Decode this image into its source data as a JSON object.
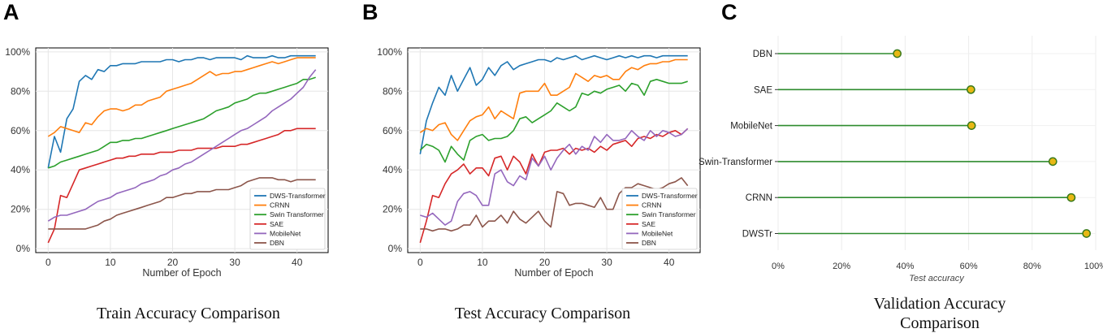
{
  "chart_data": [
    {
      "panel": "A",
      "type": "line",
      "title": "Train Accuracy Comparison",
      "xlabel": "Number of Epoch",
      "ylabel": "",
      "xlim": [
        -2,
        45
      ],
      "ylim": [
        -2,
        102
      ],
      "xticks": [
        0,
        10,
        20,
        30,
        40
      ],
      "yticks": [
        0,
        20,
        40,
        60,
        80,
        100
      ],
      "ytick_labels": [
        "0%",
        "20%",
        "40%",
        "60%",
        "80%",
        "100%"
      ],
      "legend_position": "lower-right",
      "x": [
        0,
        1,
        2,
        3,
        4,
        5,
        6,
        7,
        8,
        9,
        10,
        11,
        12,
        13,
        14,
        15,
        16,
        17,
        18,
        19,
        20,
        21,
        22,
        23,
        24,
        25,
        26,
        27,
        28,
        29,
        30,
        31,
        32,
        33,
        34,
        35,
        36,
        37,
        38,
        39,
        40,
        41,
        42,
        43
      ],
      "series": [
        {
          "name": "DWS-Transformer",
          "color": "#1f77b4",
          "values": [
            41,
            57,
            49,
            66,
            71,
            85,
            88,
            86,
            91,
            90,
            93,
            93,
            94,
            94,
            94,
            95,
            95,
            95,
            95,
            96,
            96,
            95,
            96,
            96,
            97,
            97,
            96,
            97,
            97,
            97,
            97,
            96,
            98,
            97,
            97,
            97,
            98,
            97,
            97,
            98,
            98,
            98,
            98,
            98
          ]
        },
        {
          "name": "CRNN",
          "color": "#ff7f0e",
          "values": [
            57,
            59,
            62,
            61,
            60,
            59,
            64,
            63,
            67,
            70,
            71,
            71,
            70,
            71,
            73,
            73,
            75,
            76,
            77,
            80,
            81,
            82,
            83,
            84,
            86,
            88,
            90,
            88,
            89,
            89,
            90,
            90,
            91,
            92,
            93,
            94,
            95,
            94,
            95,
            96,
            97,
            97,
            97,
            97
          ]
        },
        {
          "name": "Swin Transformer",
          "color": "#2ca02c",
          "values": [
            41,
            42,
            44,
            45,
            46,
            47,
            48,
            49,
            50,
            52,
            54,
            54,
            55,
            55,
            56,
            56,
            57,
            58,
            59,
            60,
            61,
            62,
            63,
            64,
            65,
            66,
            68,
            70,
            71,
            72,
            74,
            75,
            76,
            78,
            79,
            79,
            80,
            81,
            82,
            83,
            84,
            86,
            86,
            87
          ]
        },
        {
          "name": "SAE",
          "color": "#d62728",
          "values": [
            3,
            10,
            27,
            26,
            33,
            40,
            41,
            42,
            43,
            44,
            45,
            46,
            46,
            47,
            47,
            48,
            48,
            48,
            49,
            49,
            49,
            50,
            50,
            50,
            51,
            51,
            51,
            51,
            52,
            52,
            52,
            53,
            53,
            54,
            55,
            56,
            57,
            58,
            60,
            60,
            61,
            61,
            61,
            61
          ]
        },
        {
          "name": "MobileNet",
          "color": "#9467bd",
          "values": [
            14,
            16,
            17,
            17,
            18,
            19,
            20,
            22,
            24,
            25,
            26,
            28,
            29,
            30,
            31,
            33,
            34,
            35,
            37,
            38,
            40,
            41,
            43,
            44,
            46,
            48,
            50,
            52,
            54,
            56,
            58,
            60,
            61,
            63,
            65,
            67,
            70,
            72,
            74,
            76,
            79,
            82,
            87,
            91
          ]
        },
        {
          "name": "DBN",
          "color": "#8c564b",
          "values": [
            10,
            10,
            10,
            10,
            10,
            10,
            10,
            11,
            12,
            14,
            15,
            17,
            18,
            19,
            20,
            21,
            22,
            23,
            24,
            26,
            26,
            27,
            28,
            28,
            29,
            29,
            29,
            30,
            30,
            30,
            31,
            32,
            34,
            35,
            36,
            36,
            36,
            35,
            35,
            34,
            35,
            35,
            35,
            35
          ]
        }
      ]
    },
    {
      "panel": "B",
      "type": "line",
      "title": "Test Accuracy Comparison",
      "xlabel": "Number of Epoch",
      "ylabel": "",
      "xlim": [
        -2,
        45
      ],
      "ylim": [
        -2,
        102
      ],
      "xticks": [
        0,
        10,
        20,
        30,
        40
      ],
      "yticks": [
        0,
        20,
        40,
        60,
        80,
        100
      ],
      "ytick_labels": [
        "0%",
        "20%",
        "40%",
        "60%",
        "80%",
        "100%"
      ],
      "legend_position": "lower-right",
      "x": [
        0,
        1,
        2,
        3,
        4,
        5,
        6,
        7,
        8,
        9,
        10,
        11,
        12,
        13,
        14,
        15,
        16,
        17,
        18,
        19,
        20,
        21,
        22,
        23,
        24,
        25,
        26,
        27,
        28,
        29,
        30,
        31,
        32,
        33,
        34,
        35,
        36,
        37,
        38,
        39,
        40,
        41,
        42,
        43
      ],
      "series": [
        {
          "name": "DWS-Transformer",
          "color": "#1f77b4",
          "values": [
            48,
            65,
            74,
            82,
            78,
            88,
            80,
            86,
            92,
            83,
            86,
            92,
            88,
            93,
            95,
            91,
            93,
            94,
            95,
            96,
            96,
            95,
            97,
            96,
            97,
            98,
            96,
            97,
            98,
            97,
            96,
            97,
            98,
            97,
            98,
            97,
            98,
            98,
            97,
            98,
            98,
            98,
            98,
            98
          ]
        },
        {
          "name": "CRNN",
          "color": "#ff7f0e",
          "values": [
            59,
            61,
            60,
            63,
            64,
            58,
            55,
            60,
            65,
            67,
            68,
            72,
            66,
            70,
            68,
            66,
            79,
            80,
            80,
            80,
            84,
            78,
            78,
            80,
            82,
            89,
            87,
            85,
            88,
            87,
            88,
            86,
            86,
            90,
            92,
            91,
            93,
            94,
            94,
            95,
            95,
            96,
            96,
            96
          ]
        },
        {
          "name": "Swin Transformer",
          "color": "#2ca02c",
          "values": [
            50,
            53,
            52,
            50,
            44,
            52,
            48,
            45,
            55,
            57,
            58,
            55,
            56,
            56,
            57,
            60,
            66,
            67,
            64,
            66,
            68,
            70,
            74,
            72,
            70,
            72,
            79,
            78,
            80,
            79,
            81,
            82,
            83,
            80,
            84,
            83,
            78,
            85,
            86,
            85,
            84,
            84,
            84,
            85
          ]
        },
        {
          "name": "SAE",
          "color": "#d62728",
          "values": [
            3,
            14,
            27,
            26,
            33,
            38,
            40,
            43,
            38,
            41,
            41,
            37,
            46,
            47,
            40,
            47,
            44,
            38,
            48,
            42,
            49,
            50,
            50,
            51,
            48,
            51,
            50,
            51,
            49,
            52,
            50,
            53,
            54,
            55,
            52,
            56,
            57,
            56,
            58,
            57,
            59,
            60,
            58,
            61
          ]
        },
        {
          "name": "MobileNet",
          "color": "#9467bd",
          "values": [
            17,
            16,
            18,
            15,
            12,
            14,
            24,
            28,
            29,
            27,
            22,
            22,
            38,
            40,
            34,
            32,
            37,
            35,
            46,
            42,
            47,
            40,
            46,
            50,
            53,
            48,
            52,
            50,
            57,
            54,
            58,
            55,
            55,
            56,
            60,
            57,
            55,
            60,
            57,
            60,
            59,
            57,
            58,
            61
          ]
        },
        {
          "name": "DBN",
          "color": "#8c564b",
          "values": [
            10,
            10,
            9,
            10,
            10,
            9,
            10,
            12,
            12,
            17,
            11,
            14,
            14,
            17,
            13,
            19,
            15,
            13,
            16,
            19,
            14,
            11,
            29,
            28,
            22,
            23,
            23,
            22,
            21,
            26,
            20,
            20,
            28,
            31,
            31,
            33,
            32,
            31,
            30,
            31,
            33,
            34,
            36,
            32
          ]
        }
      ]
    },
    {
      "panel": "C",
      "type": "lollipop",
      "title": "Validation Accuracy Comparison",
      "title_lines": [
        "Validation Accuracy",
        "Comparison"
      ],
      "xlabel": "Test accuracy",
      "ylabel": "",
      "xlim": [
        0,
        100
      ],
      "xticks": [
        0,
        20,
        40,
        60,
        80,
        100
      ],
      "xtick_labels": [
        "0%",
        "20%",
        "40%",
        "60%",
        "80%",
        "100%"
      ],
      "categories": [
        "DBN",
        "SAE",
        "MobileNet",
        "Swin-Transformer",
        "CRNN",
        "DWSTr"
      ],
      "values": [
        37.5,
        60.7,
        60.9,
        86.5,
        92.3,
        97.1
      ],
      "stem_color": "#2e8b2e",
      "marker_color": "#e8b814",
      "marker_edge": "#3a7a1a"
    }
  ]
}
